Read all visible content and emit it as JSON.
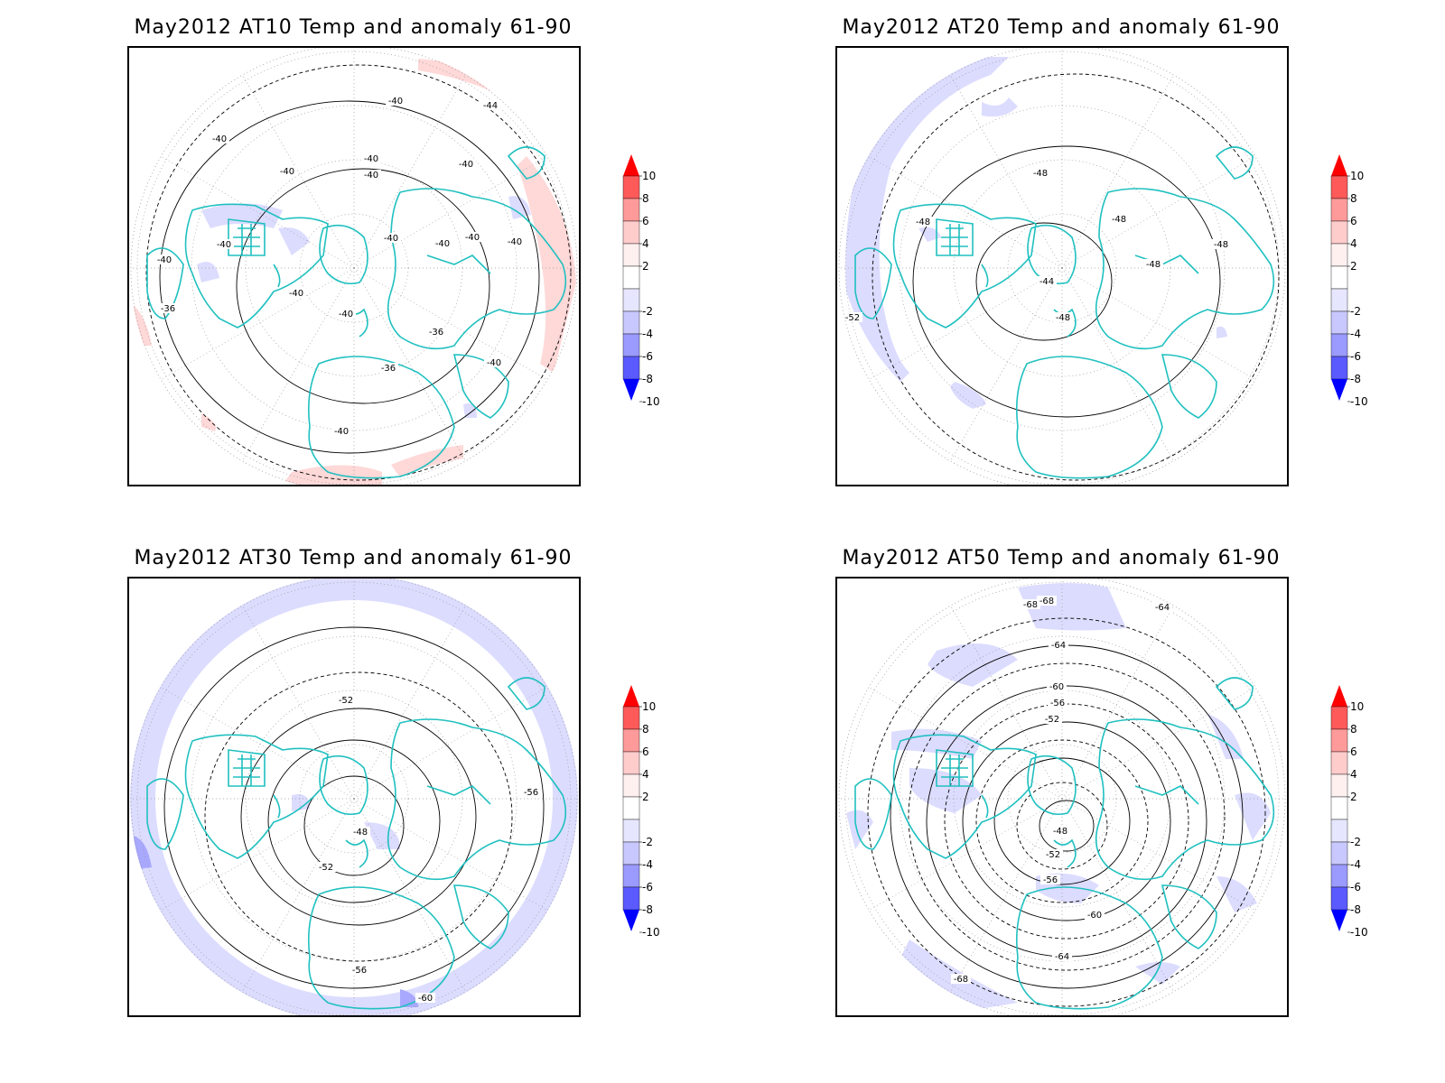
{
  "panels": [
    {
      "title": "May2012 AT10 Temp and anomaly 61-90",
      "contour_labels": [
        "-40",
        "-40",
        "-40",
        "-40",
        "-40",
        "-40",
        "-40",
        "-40",
        "-40",
        "-40",
        "-40",
        "-40",
        "-40",
        "-36",
        "-36",
        "-36",
        "-44",
        "-40",
        "-40",
        "-40"
      ]
    },
    {
      "title": "May2012 AT20 Temp and anomaly 61-90",
      "contour_labels": [
        "-48",
        "-48",
        "-48",
        "-48",
        "-48",
        "-44",
        "-48",
        "-52"
      ]
    },
    {
      "title": "May2012 AT30 Temp and anomaly 61-90",
      "contour_labels": [
        "-52",
        "-48",
        "-52",
        "-56",
        "-56",
        "-60"
      ]
    },
    {
      "title": "May2012 AT50 Temp and anomaly 61-90",
      "contour_labels": [
        "-68",
        "-68",
        "-64",
        "-60",
        "-56",
        "-52",
        "-48",
        "-52",
        "-56",
        "-60",
        "-64",
        "-64",
        "-68"
      ]
    }
  ],
  "colorbar": {
    "levels": [
      "10",
      "8",
      "6",
      "4",
      "2",
      "-2",
      "-4",
      "-6",
      "-8",
      "-10"
    ],
    "colors": [
      "#ff1a1a",
      "#ff5a5a",
      "#ff9a9a",
      "#ffcccc",
      "#fff0f0",
      "#ffffff",
      "#e6e6ff",
      "#c8c8ff",
      "#9a9aff",
      "#5a5aff",
      "#1a1aff"
    ],
    "top_arrow_color": "#ff0000",
    "bottom_arrow_color": "#0000ff"
  },
  "colors": {
    "coastline": "#20c0c0",
    "contour": "#000000",
    "gridline": "#999999",
    "anomaly_warm": "#ffd8d8",
    "anomaly_cold": "#dcdcff",
    "anomaly_cold_strong": "#a8a8ff"
  }
}
